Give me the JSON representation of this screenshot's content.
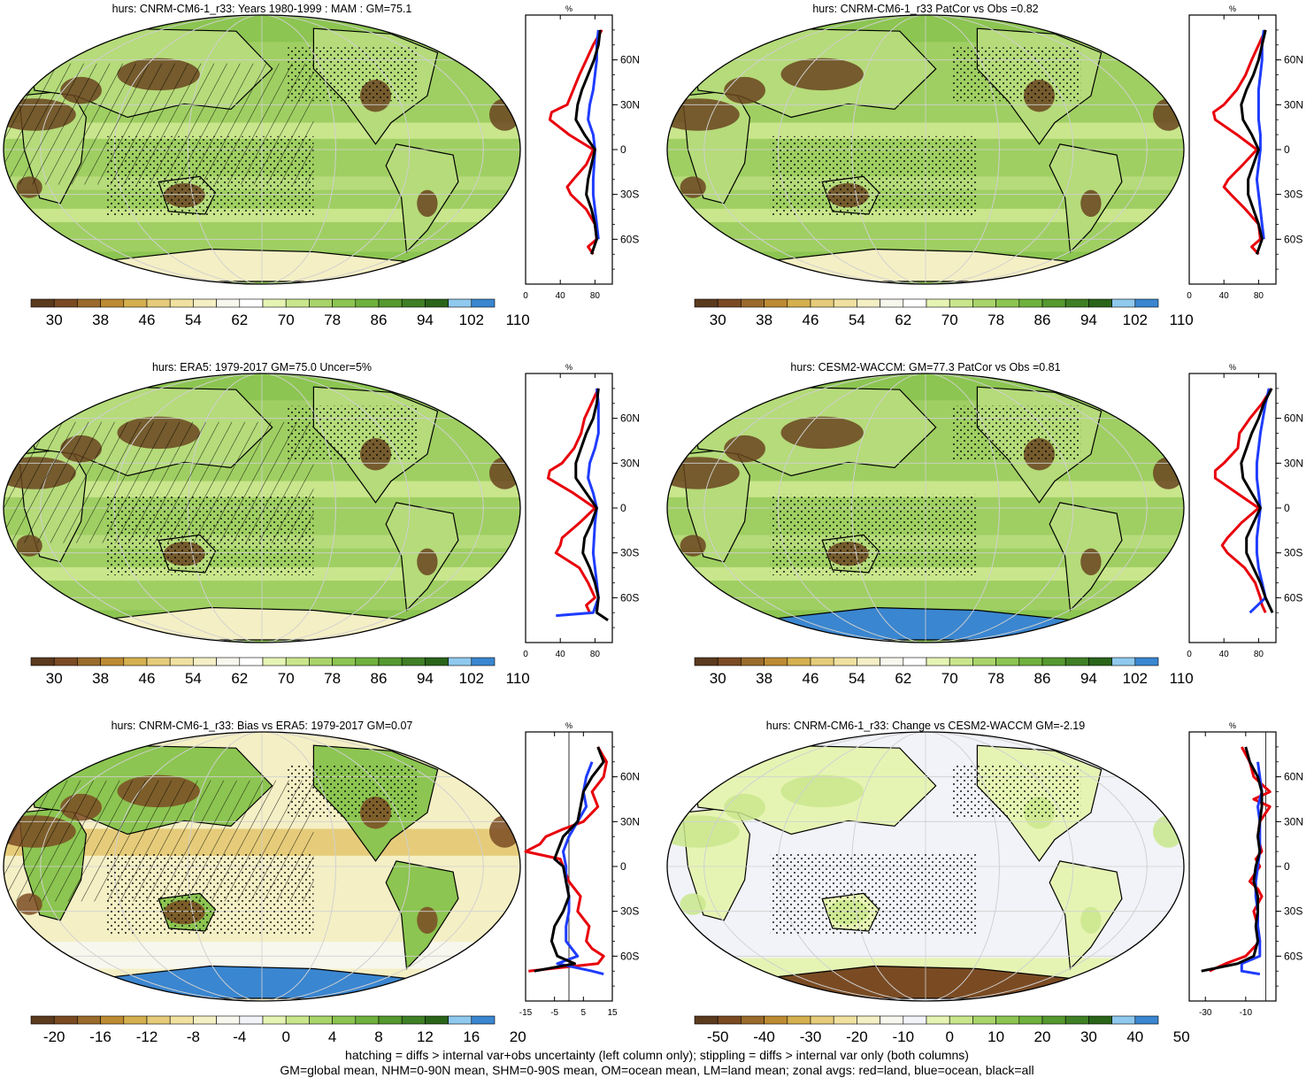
{
  "chart_data": [
    {
      "type": "map",
      "title": "hurs: CNRM-CM6-1_r33: Years 1980-1999 : MAM : GM=75.1",
      "palette": "base",
      "colorbar_labels": [
        "30",
        "38",
        "46",
        "54",
        "62",
        "70",
        "78",
        "86",
        "94",
        "102",
        "110"
      ],
      "hatching": true,
      "stippling": true,
      "zonal": {
        "type": "line",
        "unit": "%",
        "xlim": [
          0,
          100
        ],
        "xticks": [
          "0",
          "40",
          "80"
        ],
        "yticks": [
          "60N",
          "30N",
          "0",
          "30S",
          "60S"
        ],
        "series": [
          {
            "color": "#e8000b",
            "lat": [
              80,
              70,
              60,
              50,
              40,
              30,
              25,
              20,
              10,
              0,
              -10,
              -20,
              -25,
              -30,
              -40,
              -50,
              -60,
              -65,
              -70
            ],
            "values": [
              88,
              78,
              70,
              62,
              55,
              48,
              30,
              28,
              50,
              78,
              70,
              55,
              48,
              52,
              70,
              80,
              82,
              72,
              78
            ]
          },
          {
            "color": "#1f3cff",
            "lat": [
              80,
              70,
              60,
              50,
              40,
              30,
              20,
              10,
              0,
              -10,
              -20,
              -30,
              -40,
              -50,
              -60
            ],
            "values": [
              84,
              82,
              82,
              80,
              78,
              74,
              72,
              78,
              80,
              79,
              78,
              78,
              80,
              82,
              84
            ]
          },
          {
            "color": "#000000",
            "lat": [
              80,
              70,
              60,
              50,
              40,
              30,
              20,
              10,
              0,
              -10,
              -20,
              -30,
              -40,
              -50,
              -60,
              -70
            ],
            "values": [
              86,
              84,
              79,
              72,
              65,
              60,
              58,
              68,
              80,
              76,
              72,
              70,
              76,
              80,
              82,
              76
            ]
          }
        ]
      }
    },
    {
      "type": "map",
      "title": "hurs: CNRM-CM6-1_r33 PatCor vs Obs =0.82",
      "palette": "base",
      "colorbar_labels": [
        "30",
        "38",
        "46",
        "54",
        "62",
        "70",
        "78",
        "86",
        "94",
        "102",
        "110"
      ],
      "hatching": false,
      "stippling": true,
      "zonal": {
        "type": "line",
        "unit": "%",
        "xlim": [
          0,
          100
        ],
        "xticks": [
          "0",
          "40",
          "80"
        ],
        "yticks": [
          "60N",
          "30N",
          "0",
          "30S",
          "60S"
        ],
        "series": [
          {
            "color": "#e8000b",
            "lat": [
              80,
              70,
              60,
              50,
              40,
              30,
              25,
              20,
              10,
              0,
              -10,
              -20,
              -25,
              -30,
              -40,
              -50,
              -60,
              -65,
              -70
            ],
            "values": [
              88,
              80,
              72,
              65,
              55,
              40,
              28,
              30,
              55,
              78,
              62,
              45,
              40,
              48,
              65,
              80,
              82,
              72,
              80
            ]
          },
          {
            "color": "#1f3cff",
            "lat": [
              80,
              70,
              60,
              50,
              40,
              30,
              20,
              10,
              0,
              -10,
              -20,
              -30,
              -40,
              -50,
              -60
            ],
            "values": [
              86,
              84,
              84,
              82,
              80,
              80,
              80,
              82,
              82,
              80,
              78,
              80,
              82,
              84,
              86
            ]
          },
          {
            "color": "#000000",
            "lat": [
              80,
              70,
              60,
              50,
              40,
              30,
              20,
              10,
              0,
              -10,
              -20,
              -30,
              -40,
              -50,
              -60,
              -70
            ],
            "values": [
              88,
              84,
              80,
              74,
              66,
              60,
              62,
              72,
              80,
              74,
              68,
              68,
              74,
              80,
              84,
              78
            ]
          }
        ]
      }
    },
    {
      "type": "map",
      "title": "hurs: ERA5: 1979-2017 GM=75.0 Uncer=5%",
      "palette": "base",
      "colorbar_labels": [
        "30",
        "38",
        "46",
        "54",
        "62",
        "70",
        "78",
        "86",
        "94",
        "102",
        "110"
      ],
      "hatching": true,
      "stippling": true,
      "zonal": {
        "type": "line",
        "unit": "%",
        "xlim": [
          0,
          100
        ],
        "xticks": [
          "0",
          "40",
          "80"
        ],
        "yticks": [
          "60N",
          "30N",
          "0",
          "30S",
          "60S"
        ],
        "series": [
          {
            "color": "#e8000b",
            "lat": [
              80,
              70,
              60,
              50,
              40,
              30,
              25,
              20,
              10,
              0,
              -10,
              -20,
              -25,
              -30,
              -40,
              -50,
              -60,
              -65,
              -70
            ],
            "values": [
              84,
              76,
              68,
              64,
              56,
              42,
              28,
              26,
              55,
              80,
              62,
              42,
              40,
              35,
              62,
              72,
              80,
              70,
              74
            ]
          },
          {
            "color": "#1f3cff",
            "lat": [
              80,
              70,
              60,
              50,
              40,
              30,
              20,
              10,
              0,
              -10,
              -20,
              -30,
              -40,
              -50,
              -60,
              -70,
              -72
            ],
            "values": [
              82,
              84,
              84,
              84,
              80,
              74,
              72,
              78,
              82,
              80,
              79,
              78,
              80,
              82,
              84,
              78,
              35
            ]
          },
          {
            "color": "#000000",
            "lat": [
              80,
              70,
              60,
              50,
              40,
              30,
              20,
              10,
              0,
              -10,
              -20,
              -30,
              -40,
              -50,
              -60,
              -70,
              -75
            ],
            "values": [
              84,
              82,
              78,
              70,
              64,
              58,
              58,
              70,
              82,
              76,
              68,
              66,
              74,
              80,
              84,
              82,
              95
            ]
          }
        ]
      }
    },
    {
      "type": "map",
      "title": "hurs: CESM2-WACCM: GM=77.3 PatCor vs Obs =0.81",
      "palette": "base",
      "colorbar_labels": [
        "30",
        "38",
        "46",
        "54",
        "62",
        "70",
        "78",
        "86",
        "94",
        "102",
        "110"
      ],
      "hatching": false,
      "stippling": true,
      "zonal": {
        "type": "line",
        "unit": "%",
        "xlim": [
          0,
          100
        ],
        "xticks": [
          "0",
          "40",
          "80"
        ],
        "yticks": [
          "60N",
          "30N",
          "0",
          "30S",
          "60S"
        ],
        "series": [
          {
            "color": "#e8000b",
            "lat": [
              80,
              70,
              60,
              50,
              40,
              30,
              25,
              20,
              10,
              0,
              -10,
              -20,
              -25,
              -30,
              -40,
              -50,
              -60,
              -65,
              -70
            ],
            "values": [
              95,
              84,
              70,
              58,
              56,
              40,
              30,
              30,
              55,
              80,
              60,
              44,
              38,
              44,
              64,
              76,
              82,
              84,
              88
            ]
          },
          {
            "color": "#1f3cff",
            "lat": [
              80,
              70,
              60,
              50,
              40,
              30,
              20,
              10,
              0,
              -10,
              -20,
              -30,
              -40,
              -50,
              -60,
              -70
            ],
            "values": [
              92,
              88,
              85,
              82,
              80,
              78,
              78,
              80,
              82,
              80,
              78,
              78,
              80,
              84,
              88,
              70
            ]
          },
          {
            "color": "#000000",
            "lat": [
              80,
              70,
              60,
              50,
              40,
              30,
              20,
              10,
              0,
              -10,
              -20,
              -30,
              -40,
              -50,
              -60,
              -70
            ],
            "values": [
              95,
              86,
              80,
              72,
              66,
              60,
              62,
              72,
              82,
              74,
              66,
              66,
              74,
              82,
              88,
              96
            ]
          }
        ]
      }
    },
    {
      "type": "map",
      "title": "hurs: CNRM-CM6-1_r33: Bias vs ERA5: 1979-2017 GM=0.07",
      "palette": "diff",
      "colorbar_labels": [
        "-20",
        "-16",
        "-12",
        "-8",
        "-4",
        "0",
        "4",
        "8",
        "12",
        "16",
        "20"
      ],
      "hatching": true,
      "stippling": true,
      "zonal": {
        "type": "line",
        "unit": "%",
        "xlim": [
          -15,
          15
        ],
        "xticks": [
          "-15",
          "-5",
          "5",
          "15"
        ],
        "yticks": [
          "60N",
          "30N",
          "0",
          "30S",
          "60S"
        ],
        "series": [
          {
            "color": "#e8000b",
            "lat": [
              80,
              70,
              60,
              50,
              40,
              30,
              25,
              20,
              15,
              10,
              5,
              0,
              -10,
              -15,
              -20,
              -30,
              -40,
              -50,
              -55,
              -60,
              -65,
              -70
            ],
            "values": [
              10,
              13,
              12,
              8,
              10,
              5,
              -2,
              -8,
              -10,
              -15,
              -3,
              -2,
              0,
              2,
              4,
              3,
              7,
              6,
              8,
              12,
              10,
              -14
            ]
          },
          {
            "color": "#1f3cff",
            "lat": [
              70,
              60,
              50,
              40,
              30,
              20,
              10,
              0,
              -10,
              -20,
              -30,
              -40,
              -50,
              -60,
              -65,
              -70,
              -72
            ],
            "values": [
              8,
              6,
              5,
              6,
              3,
              0,
              -2,
              -1,
              -1,
              0,
              0,
              -1,
              -1,
              3,
              -4,
              8,
              12
            ]
          },
          {
            "color": "#000000",
            "lat": [
              80,
              70,
              60,
              50,
              40,
              30,
              20,
              10,
              5,
              0,
              -10,
              -20,
              -30,
              -40,
              -50,
              -60,
              -65,
              -70
            ],
            "values": [
              10,
              12,
              8,
              5,
              4,
              3,
              -2,
              -4,
              -5,
              -2,
              -1,
              0,
              -2,
              -5,
              -6,
              -4,
              2,
              -12
            ]
          }
        ]
      }
    },
    {
      "type": "map",
      "title": "hurs: CNRM-CM6-1_r33: Change vs CESM2-WACCM GM=-2.19",
      "palette": "diff",
      "colorbar_labels": [
        "-50",
        "-40",
        "-30",
        "-20",
        "-10",
        "0",
        "10",
        "20",
        "30",
        "40",
        "50"
      ],
      "hatching": false,
      "stippling": true,
      "zonal": {
        "type": "line",
        "unit": "%",
        "xlim": [
          -38,
          5
        ],
        "xticks": [
          "-30",
          "-10"
        ],
        "yticks": [
          "60N",
          "30N",
          "0",
          "30S",
          "60S"
        ],
        "series": [
          {
            "color": "#e8000b",
            "lat": [
              80,
              75,
              70,
              60,
              50,
              45,
              40,
              30,
              20,
              10,
              5,
              0,
              -10,
              -15,
              -20,
              -30,
              -40,
              -50,
              -60,
              -65,
              -70
            ],
            "values": [
              -12,
              -10,
              -8,
              -6,
              2,
              -6,
              2,
              -3,
              -4,
              -2,
              -5,
              -3,
              -8,
              -4,
              -2,
              -6,
              -4,
              -3,
              -10,
              -20,
              -28
            ]
          },
          {
            "color": "#1f3cff",
            "lat": [
              70,
              60,
              50,
              40,
              30,
              20,
              10,
              0,
              -10,
              -20,
              -30,
              -40,
              -50,
              -60,
              -65,
              -70,
              -72
            ],
            "values": [
              -4,
              -3,
              -2,
              -4,
              -3,
              -3,
              -3,
              -4,
              -5,
              -5,
              -4,
              -4,
              -3,
              -3,
              -12,
              -12,
              -3
            ]
          },
          {
            "color": "#000000",
            "lat": [
              80,
              70,
              60,
              50,
              40,
              30,
              20,
              10,
              0,
              -10,
              -20,
              -30,
              -40,
              -50,
              -60,
              -65,
              -70
            ],
            "values": [
              -10,
              -8,
              -4,
              -2,
              -2,
              -3,
              -4,
              -3,
              -5,
              -6,
              -4,
              -4,
              -5,
              -4,
              -6,
              -14,
              -32
            ]
          }
        ]
      }
    }
  ],
  "palettes": {
    "base": [
      "#5b3a1e",
      "#7a4b23",
      "#9a6b2c",
      "#bd8b33",
      "#d5b04f",
      "#e6cc7a",
      "#f0e1a1",
      "#f5efc5",
      "#f8f7ee",
      "#ffffff",
      "#e6f4b3",
      "#c9e68c",
      "#a9d46a",
      "#8cc551",
      "#6fb13d",
      "#55992f",
      "#3f7f25",
      "#2a6419",
      "#8fc9ee",
      "#3a86d0"
    ],
    "diff": [
      "#5b3a1e",
      "#7a4b23",
      "#9a6b2c",
      "#bd8b33",
      "#d5b04f",
      "#e6cc7a",
      "#f0e1a1",
      "#f5efc5",
      "#f8f7ee",
      "#f1f3f8",
      "#e6f4b3",
      "#c9e68c",
      "#a9d46a",
      "#8cc551",
      "#6fb13d",
      "#55992f",
      "#3f7f25",
      "#2a6419",
      "#8fc9ee",
      "#3a86d0"
    ]
  },
  "footer": {
    "line1": "hatching = diffs > internal var+obs uncertainty (left column only); stippling = diffs > internal var only (both columns)",
    "line2": "GM=global mean, NHM=0-90N mean, SHM=0-90S mean, OM=ocean mean, LM=land mean; zonal avgs: red=land, blue=ocean, black=all"
  }
}
